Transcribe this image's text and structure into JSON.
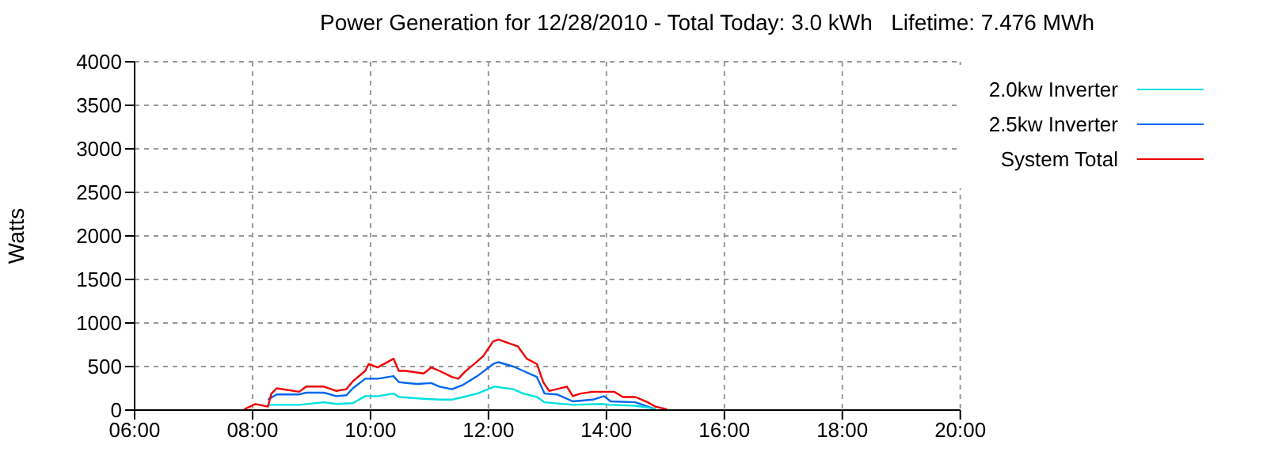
{
  "chart_data": {
    "type": "line",
    "title": "Power Generation for 12/28/2010 - Total Today: 3.0 kWh   Lifetime: 7.476 MWh",
    "ylabel": "Watts",
    "xlim": [
      6,
      20
    ],
    "xticks": [
      {
        "value": 6,
        "label": "06:00"
      },
      {
        "value": 8,
        "label": "08:00"
      },
      {
        "value": 10,
        "label": "10:00"
      },
      {
        "value": 12,
        "label": "12:00"
      },
      {
        "value": 14,
        "label": "14:00"
      },
      {
        "value": 16,
        "label": "16:00"
      },
      {
        "value": 18,
        "label": "18:00"
      },
      {
        "value": 20,
        "label": "20:00"
      }
    ],
    "ylim": [
      0,
      4000
    ],
    "yticks": [
      0,
      500,
      1000,
      1500,
      2000,
      2500,
      3000,
      3500,
      4000
    ],
    "grid": true,
    "legend": "top right",
    "marker": "none",
    "line_style": "solid",
    "series": [
      {
        "name": "2.5kw Inverter",
        "color": "#0066ee",
        "x": [
          8.26,
          8.41,
          8.79,
          8.91,
          9.21,
          9.42,
          9.59,
          9.7,
          9.91,
          10.12,
          10.39,
          10.48,
          10.79,
          11.03,
          11.17,
          11.38,
          11.57,
          11.81,
          12.08,
          12.17,
          12.42,
          12.59,
          12.82,
          12.95,
          13.16,
          13.43,
          13.77,
          13.96,
          14.07,
          14.49,
          14.7,
          14.83
        ],
        "values": [
          120,
          180,
          180,
          200,
          200,
          160,
          170,
          250,
          360,
          360,
          390,
          320,
          300,
          310,
          270,
          240,
          290,
          390,
          530,
          550,
          500,
          450,
          380,
          190,
          180,
          100,
          120,
          160,
          100,
          90,
          40,
          10
        ]
      },
      {
        "name": "2.0kw Inverter",
        "color": "#00e0e0",
        "x": [
          8.26,
          8.79,
          9.21,
          9.42,
          9.7,
          9.91,
          10.12,
          10.39,
          10.48,
          10.9,
          11.17,
          11.38,
          11.57,
          11.81,
          12.1,
          12.42,
          12.59,
          12.82,
          12.95,
          13.43,
          13.91,
          14.07,
          14.49,
          14.7,
          14.83
        ],
        "values": [
          60,
          60,
          90,
          70,
          80,
          160,
          160,
          190,
          150,
          130,
          120,
          120,
          150,
          190,
          270,
          240,
          190,
          150,
          90,
          60,
          70,
          60,
          50,
          30,
          10
        ]
      },
      {
        "name": "System Total",
        "color": "#ee0000",
        "x": [
          7.86,
          8.05,
          8.26,
          8.32,
          8.41,
          8.79,
          8.91,
          9.21,
          9.42,
          9.59,
          9.7,
          9.91,
          9.97,
          10.12,
          10.39,
          10.48,
          10.6,
          10.9,
          11.03,
          11.17,
          11.38,
          11.49,
          11.6,
          11.81,
          11.91,
          12.08,
          12.17,
          12.5,
          12.65,
          12.82,
          12.93,
          13.03,
          13.33,
          13.43,
          13.56,
          13.77,
          13.96,
          14.13,
          14.28,
          14.49,
          14.7,
          14.83,
          15.02
        ],
        "values": [
          10,
          70,
          40,
          190,
          250,
          210,
          270,
          270,
          220,
          240,
          330,
          450,
          530,
          490,
          590,
          450,
          450,
          420,
          490,
          450,
          380,
          360,
          440,
          560,
          620,
          790,
          810,
          730,
          590,
          530,
          320,
          220,
          270,
          160,
          190,
          210,
          210,
          210,
          150,
          150,
          90,
          40,
          10
        ]
      }
    ]
  }
}
